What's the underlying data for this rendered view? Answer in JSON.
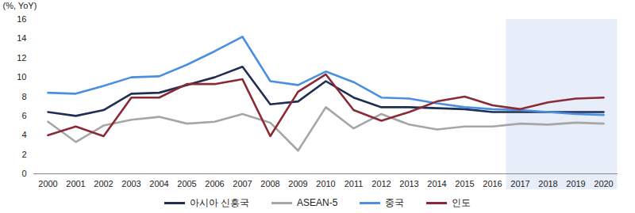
{
  "chart_data": {
    "type": "line",
    "y_label": "(%, YoY)",
    "categories": [
      "2000",
      "2001",
      "2002",
      "2003",
      "2004",
      "2005",
      "2006",
      "2007",
      "2008",
      "2009",
      "2010",
      "2011",
      "2012",
      "2013",
      "2014",
      "2015",
      "2016",
      "2017",
      "2018",
      "2019",
      "2020"
    ],
    "series": [
      {
        "name": "아시아 신흥국",
        "color": "#1f2f54",
        "values": [
          6.4,
          6.0,
          6.6,
          8.3,
          8.4,
          9.2,
          10.0,
          11.1,
          7.2,
          7.5,
          9.6,
          7.9,
          6.9,
          6.9,
          6.8,
          6.7,
          6.4,
          6.4,
          6.4,
          6.4,
          6.4
        ]
      },
      {
        "name": "ASEAN-5",
        "color": "#a6a6a6",
        "values": [
          5.4,
          3.3,
          5.0,
          5.6,
          5.9,
          5.2,
          5.4,
          6.2,
          5.3,
          2.4,
          6.9,
          4.7,
          6.2,
          5.1,
          4.6,
          4.9,
          4.9,
          5.2,
          5.1,
          5.3,
          5.2
        ]
      },
      {
        "name": "중국",
        "color": "#4a8fe0",
        "values": [
          8.4,
          8.3,
          9.1,
          10.0,
          10.1,
          11.3,
          12.7,
          14.2,
          9.6,
          9.2,
          10.6,
          9.5,
          7.9,
          7.8,
          7.3,
          6.9,
          6.7,
          6.6,
          6.4,
          6.2,
          6.1
        ]
      },
      {
        "name": "인도",
        "color": "#8b2a35",
        "values": [
          4.0,
          4.9,
          3.9,
          7.9,
          7.9,
          9.3,
          9.3,
          9.8,
          3.9,
          8.5,
          10.3,
          6.6,
          5.5,
          6.4,
          7.5,
          8.0,
          7.1,
          6.7,
          7.4,
          7.8,
          7.9
        ]
      }
    ],
    "ylim": [
      0,
      16
    ],
    "yticks": [
      0,
      2,
      4,
      6,
      8,
      10,
      12,
      14,
      16
    ],
    "shaded_range": [
      2017,
      2020
    ],
    "grid": false,
    "legend": "bottom"
  }
}
